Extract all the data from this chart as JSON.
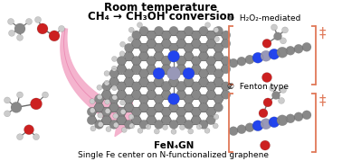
{
  "title_line1": "Room temperature",
  "title_line2": "CH₄ → CH₃OH conversion",
  "caption_line1": "FeN₄GN",
  "caption_line2": "Single Fe center on N-functionalized graphene",
  "label1": "①  H₂O₂-mediated",
  "label2": "②  Fenton type",
  "dagger": "‡",
  "bg_color": "#ffffff",
  "title_color": "#000000",
  "bracket_color": "#e07858",
  "arrow_color": "#f4b0cc",
  "arrow_edge_color": "#e878a8",
  "label_fontsize": 6.5,
  "title_fontsize": 8.5,
  "caption_fontsize": 7,
  "atom_C_color": "#888888",
  "atom_N_color": "#2244ee",
  "atom_O_color": "#cc2020",
  "atom_H_color": "#cccccc",
  "atom_Fe_color": "#9898b8"
}
